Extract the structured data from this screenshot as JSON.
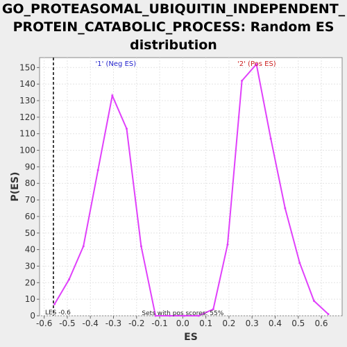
{
  "title_lines": [
    "GO_PROTEASOMAL_UBIQUITIN_INDEPENDENT_",
    "PROTEIN_CATABOLIC_PROCESS: Random ES",
    "distribution"
  ],
  "chart_data": {
    "type": "line",
    "title": "GO_PROTEASOMAL_UBIQUITIN_INDEPENDENT_PROTEIN_CATABOLIC_PROCESS: Random ES distribution",
    "xlabel": "ES",
    "ylabel": "P(ES)",
    "xlim": [
      -0.62,
      0.69
    ],
    "ylim": [
      0,
      156
    ],
    "xticks": [
      -0.6,
      -0.5,
      -0.4,
      -0.3,
      -0.2,
      -0.1,
      0.0,
      0.1,
      0.2,
      0.3,
      0.4,
      0.5,
      0.6
    ],
    "xtick_labels": [
      "-0.6",
      "-0.5",
      "-0.4",
      "-0.3",
      "-0.2",
      "-0.1",
      "0.0",
      "0.1",
      "0.2",
      "0.3",
      "0.4",
      "0.5",
      "0.6"
    ],
    "yticks": [
      0,
      10,
      20,
      30,
      40,
      50,
      60,
      70,
      80,
      90,
      100,
      110,
      120,
      130,
      140,
      150
    ],
    "grid": true,
    "line_color": "#e040fb",
    "series": [
      {
        "x": [
          -0.555,
          -0.492,
          -0.43,
          -0.367,
          -0.305,
          -0.243,
          -0.18,
          -0.118,
          -0.056,
          0.007,
          0.069,
          0.132,
          0.194,
          0.256,
          0.319,
          0.381,
          0.443,
          0.506,
          0.568,
          0.63
        ],
        "values": [
          7,
          22,
          42,
          88,
          133,
          113,
          42,
          0,
          0,
          0,
          0,
          4,
          43,
          142,
          152,
          107,
          65,
          32,
          9,
          1
        ]
      }
    ],
    "annotations": {
      "neg_label": "'1' (Neg ES)",
      "pos_label": "'2' (Pos ES)",
      "neg_color": "#2222cc",
      "pos_color": "#cc2222",
      "les_text": "LES -0.6",
      "les_x": -0.56,
      "pos_scores_text": "Sets with pos scores: 55%"
    }
  }
}
